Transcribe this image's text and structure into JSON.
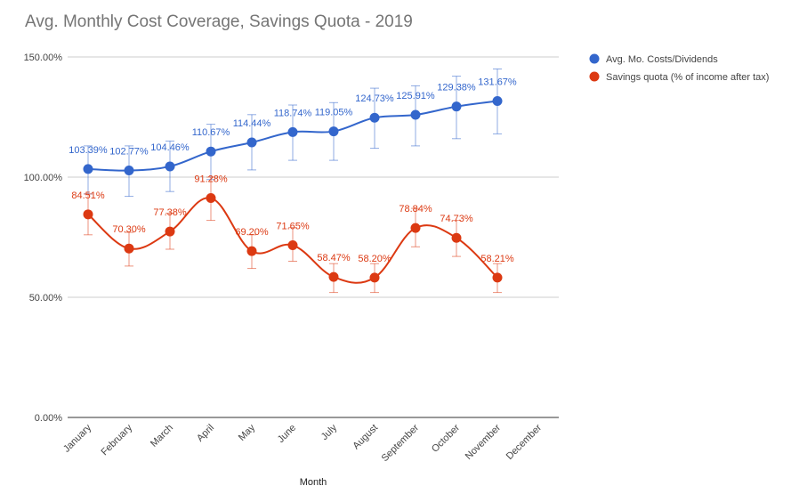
{
  "chart_data": {
    "type": "line",
    "title": "Avg. Monthly Cost Coverage, Savings Quota - 2019",
    "xlabel": "Month",
    "ylabel": "",
    "ylim": [
      0,
      150
    ],
    "yticks": [
      "0.00%",
      "50.00%",
      "100.00%",
      "150.00%"
    ],
    "ytick_values": [
      0,
      50,
      100,
      150
    ],
    "categories": [
      "January",
      "February",
      "March",
      "April",
      "May",
      "June",
      "July",
      "August",
      "September",
      "October",
      "November",
      "December"
    ],
    "series": [
      {
        "name": "Avg. Mo. Costs/Dividends",
        "color": "#3366cc",
        "values": [
          103.39,
          102.77,
          104.46,
          110.67,
          114.44,
          118.74,
          119.05,
          124.73,
          125.91,
          129.38,
          131.67,
          null
        ],
        "labels": [
          "103.39%",
          "102.77%",
          "104.46%",
          "110.67%",
          "114.44%",
          "118.74%",
          "119.05%",
          "124.73%",
          "125.91%",
          "129.38%",
          "131.67%",
          ""
        ],
        "error_low": [
          93,
          92,
          94,
          99,
          103,
          107,
          107,
          112,
          113,
          116,
          118,
          null
        ],
        "error_high": [
          113,
          113,
          115,
          122,
          126,
          130,
          131,
          137,
          138,
          142,
          145,
          null
        ]
      },
      {
        "name": "Savings quota (% of income after tax)",
        "color": "#dc3912",
        "values": [
          84.51,
          70.3,
          77.38,
          91.28,
          69.2,
          71.65,
          58.47,
          58.2,
          78.84,
          74.73,
          58.21,
          null
        ],
        "labels": [
          "84.51%",
          "70.30%",
          "77.38%",
          "91.28%",
          "69.20%",
          "71.65%",
          "58.47%",
          "58.20%",
          "78.84%",
          "74.73%",
          "58.21%",
          ""
        ],
        "error_low": [
          76,
          63,
          70,
          82,
          62,
          65,
          52,
          52,
          71,
          67,
          52,
          null
        ],
        "error_high": [
          93,
          77,
          85,
          100,
          76,
          79,
          64,
          64,
          87,
          82,
          64,
          null
        ]
      }
    ],
    "legend": "right"
  }
}
